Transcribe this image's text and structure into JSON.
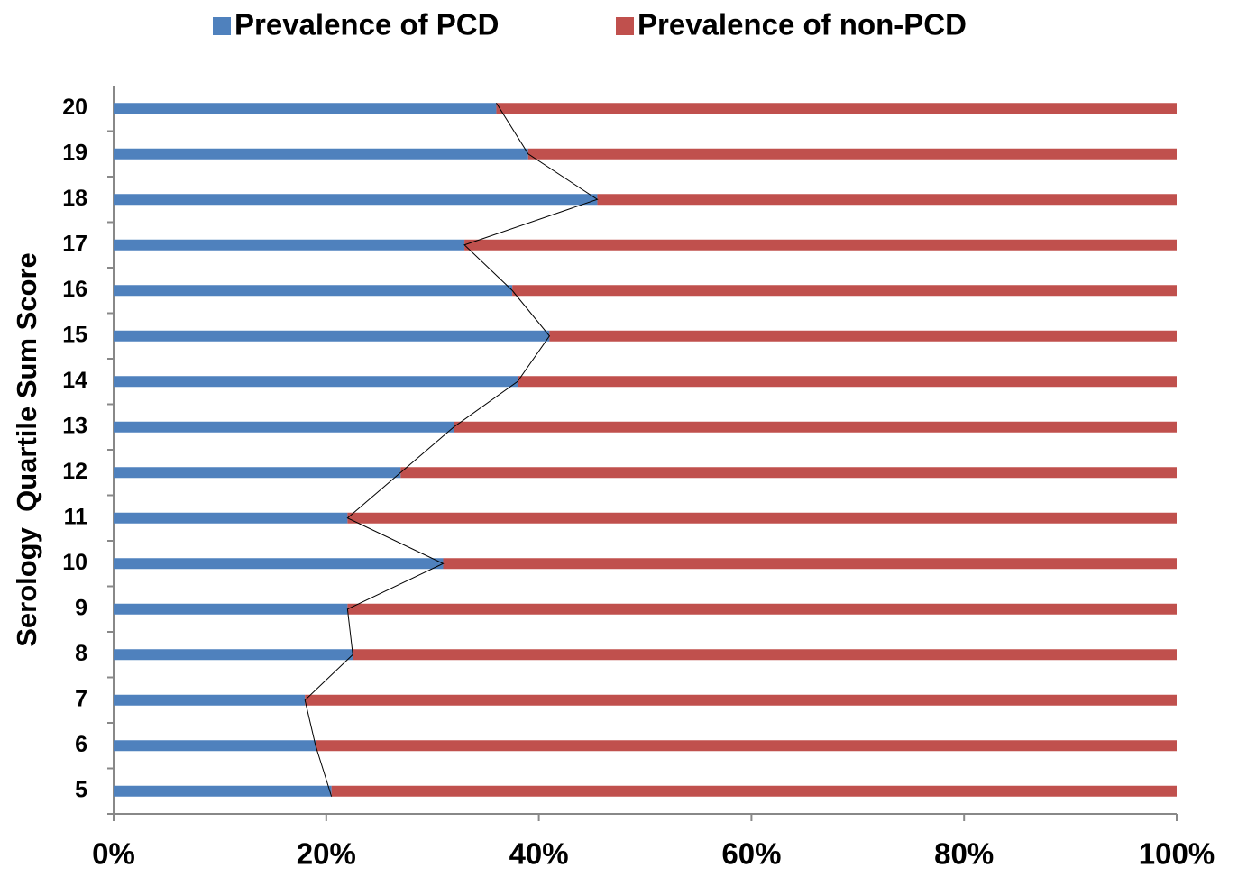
{
  "chart_data": {
    "type": "stacked-bar-horizontal",
    "y_label": "Serology  Quartile Sum Score",
    "categories": [
      "5",
      "6",
      "7",
      "8",
      "9",
      "10",
      "11",
      "12",
      "13",
      "14",
      "15",
      "16",
      "17",
      "18",
      "19",
      "20"
    ],
    "series": [
      {
        "name": "Prevalence of PCD",
        "color": "#4f81bd",
        "values": [
          20.5,
          19,
          18,
          22.5,
          22,
          31,
          22,
          27,
          32,
          38,
          41,
          37.5,
          33,
          45.5,
          39,
          36
        ]
      },
      {
        "name": "Prevalence of non-PCD",
        "color": "#c0504d",
        "values": [
          79.5,
          81,
          82,
          77.5,
          78,
          69,
          78,
          73,
          68,
          62,
          59,
          62.5,
          67,
          54.5,
          61,
          64
        ]
      }
    ],
    "xlim": [
      0,
      100
    ],
    "xticks": [
      {
        "value": 0,
        "label": "0%"
      },
      {
        "value": 20,
        "label": "20%"
      },
      {
        "value": 40,
        "label": "40%"
      },
      {
        "value": 60,
        "label": "60%"
      },
      {
        "value": 80,
        "label": "80%"
      },
      {
        "value": 100,
        "label": "100%"
      }
    ],
    "series_line": true,
    "grid": false,
    "legend": "top"
  }
}
